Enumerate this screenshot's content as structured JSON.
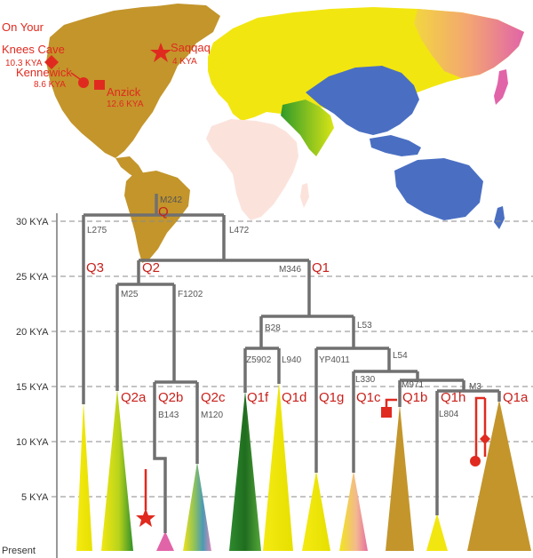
{
  "sites": [
    {
      "id": "on-your-knees-cave",
      "name_lines": [
        "On Your",
        "Knees Cave"
      ],
      "age": "10.3 KYA",
      "marker": "diamond"
    },
    {
      "id": "kennewick",
      "name_lines": [
        "Kennewick"
      ],
      "age": "8.6 KYA",
      "marker": "circle"
    },
    {
      "id": "anzick",
      "name_lines": [
        "Anzick"
      ],
      "age": "12.6 KYA",
      "marker": "square"
    },
    {
      "id": "saqqaq",
      "name_lines": [
        "Saqqaq"
      ],
      "age": "4 KYA",
      "marker": "star"
    }
  ],
  "time_axis": {
    "ticks": [
      "30 KYA",
      "25 KYA",
      "20 KYA",
      "15 KYA",
      "10 KYA",
      "5 KYA",
      "Present"
    ],
    "values_kya": [
      30,
      25,
      20,
      15,
      10,
      5,
      0
    ]
  },
  "mutations": [
    "M242",
    "L275",
    "L472",
    "M346",
    "M25",
    "F1202",
    "B28",
    "L53",
    "Z5902",
    "L940",
    "YP4011",
    "L54",
    "L330",
    "M971",
    "M3",
    "B143",
    "M120",
    "L804"
  ],
  "haplogroups": [
    "Q",
    "Q3",
    "Q2",
    "Q1",
    "Q2a",
    "Q2b",
    "Q2c",
    "Q1f",
    "Q1d",
    "Q1g",
    "Q1c",
    "Q1b",
    "Q1h",
    "Q1a"
  ],
  "colors": {
    "branch": "#707070",
    "marker": "#e02a1f",
    "label": "#c8201b",
    "americas": "#c3952b",
    "europe_asia": "#f2e610",
    "east_asia": "#4a6fc2",
    "africa": "#fbe3dc",
    "south_asia": "#3aa02e",
    "ne_asia": "#e06aa5"
  }
}
